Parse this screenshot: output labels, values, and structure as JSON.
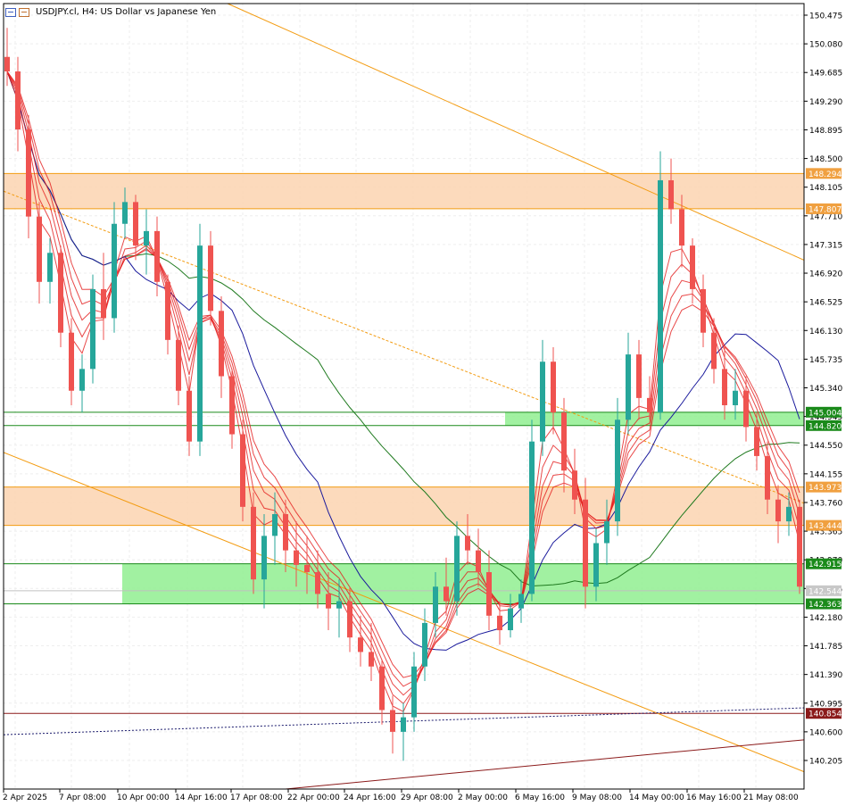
{
  "window": {
    "symbol": "USDJPY.cl",
    "timeframe": "H4",
    "description": "US Dollar vs Japanese Yen",
    "title_text": "USDJPY.cl, H4:  US Dollar vs Japanese Yen"
  },
  "price_scale": {
    "ticks": [
      "150.475",
      "150.080",
      "149.685",
      "149.290",
      "148.895",
      "148.500",
      "148.105",
      "147.710",
      "147.315",
      "146.920",
      "146.525",
      "146.130",
      "145.735",
      "145.340",
      "144.945",
      "144.550",
      "144.155",
      "143.760",
      "143.365",
      "142.970",
      "142.575",
      "142.180",
      "141.785",
      "141.390",
      "140.995",
      "140.600",
      "140.205"
    ],
    "level_labels": [
      {
        "text": "148.294",
        "kind": "supply-top",
        "color": "#f0a040"
      },
      {
        "text": "147.807",
        "kind": "supply-bottom",
        "color": "#f0a040"
      },
      {
        "text": "145.004",
        "kind": "demand-top",
        "color": "#1a8a1a"
      },
      {
        "text": "144.820",
        "kind": "demand-bottom",
        "color": "#1a8a1a"
      },
      {
        "text": "143.973",
        "kind": "supply-top",
        "color": "#f0a040"
      },
      {
        "text": "143.444",
        "kind": "supply-bottom",
        "color": "#f0a040"
      },
      {
        "text": "142.915",
        "kind": "demand-top",
        "color": "#1a8a1a"
      },
      {
        "text": "142.544",
        "kind": "current-price",
        "color": "#c8c8c8"
      },
      {
        "text": "142.363",
        "kind": "demand-bottom",
        "color": "#1a8a1a"
      },
      {
        "text": "140.854",
        "kind": "line",
        "color": "#8b1a1a"
      }
    ]
  },
  "time_scale": {
    "labels": [
      "2 Apr 2025",
      "7 Apr 08:00",
      "10 Apr 00:00",
      "14 Apr 16:00",
      "17 Apr 08:00",
      "22 Apr 00:00",
      "24 Apr 16:00",
      "29 Apr 08:00",
      "2 May 00:00",
      "6 May 16:00",
      "9 May 08:00",
      "14 May 00:00",
      "16 May 16:00",
      "21 May 08:00"
    ]
  },
  "colors": {
    "bull": "#26a69a",
    "bear": "#ef5350",
    "supply_zone": "#fcd3b0",
    "demand_zone": "#90ee90",
    "trendline": "#f39c12",
    "ma_fast": "#e31b1b",
    "ma_blue": "#1a1a9c",
    "ma_green": "#1f7a1f",
    "grid": "#eeeeee"
  },
  "chart_data": {
    "type": "candlestick",
    "series_note": "approximate OHLC of H4 bars, read off price scale",
    "ylim": [
      140.0,
      150.6
    ],
    "bars": [
      [
        149.9,
        150.3,
        149.5,
        149.7
      ],
      [
        149.7,
        149.9,
        148.6,
        148.9
      ],
      [
        148.9,
        149.1,
        147.4,
        147.7
      ],
      [
        147.7,
        147.9,
        146.5,
        146.8
      ],
      [
        146.8,
        147.4,
        146.5,
        147.2
      ],
      [
        147.2,
        147.3,
        145.9,
        146.1
      ],
      [
        146.1,
        146.3,
        145.1,
        145.3
      ],
      [
        145.3,
        145.8,
        145.0,
        145.6
      ],
      [
        145.6,
        146.9,
        145.4,
        146.7
      ],
      [
        146.7,
        147.2,
        146.0,
        146.3
      ],
      [
        146.3,
        147.9,
        146.1,
        147.6
      ],
      [
        147.6,
        148.1,
        147.4,
        147.9
      ],
      [
        147.9,
        148.0,
        147.1,
        147.3
      ],
      [
        147.3,
        147.8,
        146.9,
        147.5
      ],
      [
        147.5,
        147.7,
        146.6,
        146.8
      ],
      [
        146.8,
        146.9,
        145.8,
        146.0
      ],
      [
        146.0,
        146.2,
        145.1,
        145.3
      ],
      [
        145.3,
        145.5,
        144.4,
        144.6
      ],
      [
        144.6,
        147.6,
        144.4,
        147.3
      ],
      [
        147.3,
        147.5,
        146.2,
        146.4
      ],
      [
        146.4,
        146.6,
        145.2,
        145.5
      ],
      [
        145.5,
        145.6,
        144.5,
        144.7
      ],
      [
        144.7,
        144.9,
        143.5,
        143.7
      ],
      [
        143.7,
        143.9,
        142.5,
        142.7
      ],
      [
        142.7,
        143.6,
        142.3,
        143.3
      ],
      [
        143.3,
        143.9,
        142.9,
        143.6
      ],
      [
        143.6,
        143.8,
        142.8,
        143.1
      ],
      [
        143.1,
        143.5,
        142.6,
        142.9
      ],
      [
        142.9,
        143.3,
        142.5,
        142.8
      ],
      [
        142.8,
        143.1,
        142.3,
        142.5
      ],
      [
        142.5,
        142.8,
        142.0,
        142.3
      ],
      [
        142.3,
        142.7,
        141.9,
        142.4
      ],
      [
        142.4,
        142.6,
        141.7,
        141.9
      ],
      [
        141.9,
        142.2,
        141.5,
        141.7
      ],
      [
        141.7,
        142.1,
        141.3,
        141.5
      ],
      [
        141.5,
        141.6,
        140.7,
        140.9
      ],
      [
        140.9,
        141.1,
        140.3,
        140.6
      ],
      [
        140.6,
        141.0,
        140.2,
        140.8
      ],
      [
        140.8,
        141.7,
        140.6,
        141.5
      ],
      [
        141.5,
        142.3,
        141.3,
        142.1
      ],
      [
        142.1,
        142.8,
        141.9,
        142.6
      ],
      [
        142.6,
        143.0,
        142.2,
        142.4
      ],
      [
        142.4,
        143.5,
        142.2,
        143.3
      ],
      [
        143.3,
        143.6,
        142.9,
        143.1
      ],
      [
        143.1,
        143.4,
        142.6,
        142.8
      ],
      [
        142.8,
        143.1,
        142.0,
        142.2
      ],
      [
        142.2,
        142.4,
        141.8,
        142.0
      ],
      [
        142.0,
        142.5,
        141.9,
        142.3
      ],
      [
        142.3,
        142.7,
        142.1,
        142.5
      ],
      [
        142.5,
        144.9,
        142.4,
        144.6
      ],
      [
        144.6,
        146.0,
        144.4,
        145.7
      ],
      [
        145.7,
        145.9,
        144.7,
        145.0
      ],
      [
        145.0,
        145.2,
        143.9,
        144.2
      ],
      [
        144.2,
        144.5,
        143.6,
        143.8
      ],
      [
        143.8,
        144.1,
        142.3,
        142.6
      ],
      [
        142.6,
        143.4,
        142.4,
        143.2
      ],
      [
        143.2,
        143.8,
        142.9,
        143.5
      ],
      [
        143.5,
        145.2,
        143.3,
        144.9
      ],
      [
        144.9,
        146.1,
        144.7,
        145.8
      ],
      [
        145.8,
        146.0,
        144.9,
        145.2
      ],
      [
        145.2,
        145.5,
        144.9,
        145.0
      ],
      [
        145.0,
        148.6,
        144.9,
        148.2
      ],
      [
        148.2,
        148.5,
        147.6,
        147.8
      ],
      [
        147.8,
        148.0,
        147.0,
        147.3
      ],
      [
        147.3,
        147.4,
        146.5,
        146.7
      ],
      [
        146.7,
        146.9,
        145.9,
        146.1
      ],
      [
        146.1,
        146.3,
        145.4,
        145.6
      ],
      [
        145.6,
        145.9,
        144.9,
        145.1
      ],
      [
        145.1,
        145.6,
        144.9,
        145.3
      ],
      [
        145.3,
        145.5,
        144.6,
        144.8
      ],
      [
        144.8,
        145.0,
        144.2,
        144.4
      ],
      [
        144.4,
        144.6,
        143.6,
        143.8
      ],
      [
        143.8,
        144.0,
        143.2,
        143.5
      ],
      [
        143.5,
        143.9,
        143.3,
        143.7
      ],
      [
        143.7,
        143.8,
        142.5,
        142.6
      ]
    ]
  }
}
